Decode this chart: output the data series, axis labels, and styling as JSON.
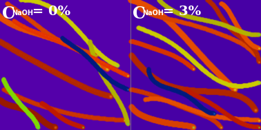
{
  "figsize": [
    3.78,
    1.89
  ],
  "dpi": 100,
  "bg_color_left": "#5500aa",
  "bg_color_right": "#4400aa",
  "divider_color": "#888888",
  "text_color": "#ffffff",
  "font_size_large": 15,
  "font_size_sub": 7,
  "font_size_rest": 14,
  "left_label": "C",
  "left_sub": "NaOH",
  "left_eq": " = 0%",
  "right_label": "C",
  "right_sub": "NaOH",
  "right_eq": " = 3%"
}
